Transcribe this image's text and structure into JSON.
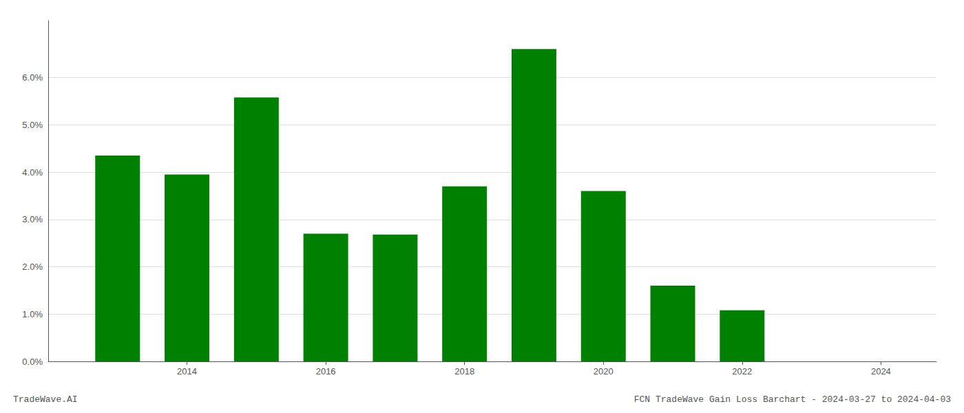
{
  "chart_data": {
    "type": "bar",
    "title": "FCN TradeWave Gain Loss Barchart - 2024-03-27 to 2024-04-03",
    "annotations": [
      "TradeWave.AI"
    ],
    "x": [
      2013,
      2014,
      2015,
      2016,
      2017,
      2018,
      2019,
      2020,
      2021,
      2022,
      2023
    ],
    "values": [
      0.0435,
      0.0395,
      0.0558,
      0.027,
      0.0268,
      0.037,
      0.066,
      0.036,
      0.016,
      0.0108,
      0.0
    ],
    "color": "#008000",
    "xlim": [
      2012.0,
      2024.8
    ],
    "xticks": [
      2014,
      2016,
      2018,
      2020,
      2022,
      2024
    ],
    "ylim": [
      0.0,
      0.072
    ],
    "yticks": [
      {
        "value": 0.0,
        "label": "0.0%"
      },
      {
        "value": 0.01,
        "label": "1.0%"
      },
      {
        "value": 0.02,
        "label": "2.0%"
      },
      {
        "value": 0.03,
        "label": "3.0%"
      },
      {
        "value": 0.04,
        "label": "4.0%"
      },
      {
        "value": 0.05,
        "label": "5.0%"
      },
      {
        "value": 0.06,
        "label": "6.0%"
      }
    ],
    "grid": true
  }
}
